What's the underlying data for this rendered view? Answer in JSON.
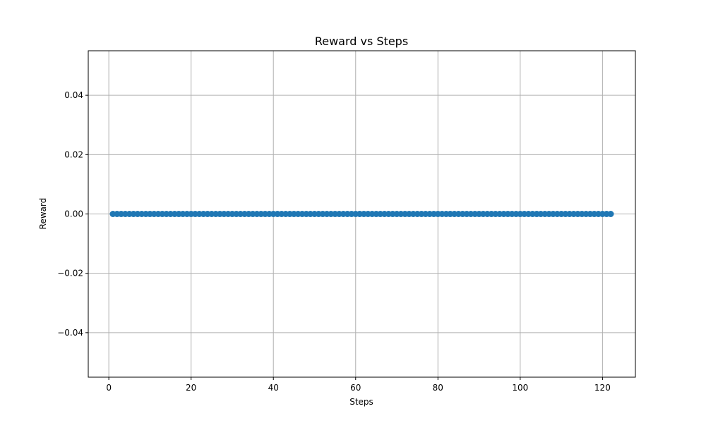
{
  "chart_data": {
    "type": "scatter",
    "title": "Reward vs Steps",
    "xlabel": "Steps",
    "ylabel": "Reward",
    "xlim": [
      -5,
      128
    ],
    "ylim": [
      -0.055,
      0.055
    ],
    "x_ticks": [
      0,
      20,
      40,
      60,
      80,
      100,
      120
    ],
    "x_tick_labels": [
      "0",
      "20",
      "40",
      "60",
      "80",
      "100",
      "120"
    ],
    "y_ticks": [
      -0.04,
      -0.02,
      0.0,
      0.02,
      0.04
    ],
    "y_tick_labels": [
      "−0.04",
      "−0.02",
      "0.00",
      "0.02",
      "0.04"
    ],
    "grid": true,
    "series": [
      {
        "x_start": 1,
        "x_end": 122,
        "x_step": 1,
        "y_value": 0.0,
        "color": "#1f77b4",
        "marker": "circle"
      }
    ]
  }
}
